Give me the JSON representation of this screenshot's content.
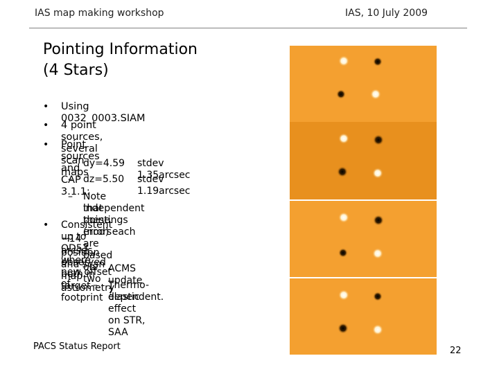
{
  "header": {
    "left": "IAS map making workshop",
    "right": "IAS, 10 July 2009"
  },
  "title": {
    "line1": "Pointing Information",
    "line2": "(4 Stars)"
  },
  "bullets": {
    "b1": "Using 0032_0003.SIAM",
    "b2": "4 point sources, several scan maps",
    "b3": "Point sources and CAP 3.1.1:",
    "b3_sub1_a": "dy=4.59",
    "b3_sub1_b": "stdev 1.35arcsec",
    "b3_sub2_a": "dz=5.50",
    "b3_sub2_b": "stdev 1.19arcsec",
    "b3_sub3_l1": "Note that these errors are based on two",
    "b3_sub3_l2": "independent pointings (nod) each",
    "b4_l1": "Consistent up to OD53 where  new offset of",
    "b4_l2": "~14 arcsec, observed both in target footprint",
    "b4_l3": "position and scan map astrometry",
    "b4_sub1": "ACMS update ?",
    "b4_sub2_l1": "Thermo-elastic effect on STR, SAA",
    "b4_sub2_l2": "dependent."
  },
  "symbols": {
    "bullet": "•",
    "dash": "–"
  },
  "footer": {
    "left": "PACS Status Report",
    "page": "22"
  },
  "colors": {
    "panel_orange_light": "#f4a030",
    "panel_orange_mid": "#e8901e",
    "panel_orange_dark": "#d97e12"
  }
}
